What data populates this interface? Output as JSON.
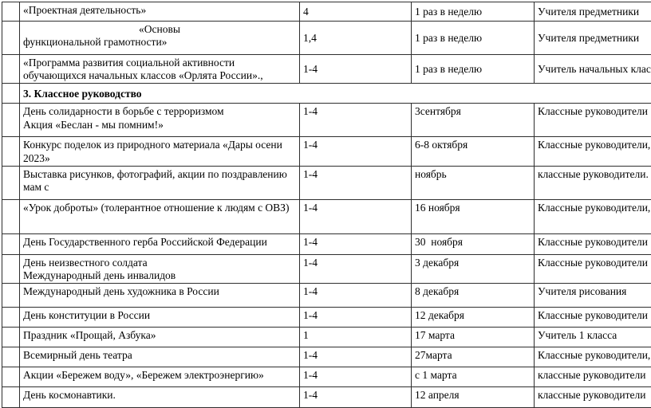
{
  "table": {
    "rows": [
      {
        "type": "item",
        "activity_lines": [
          "«Проектная деятельность»"
        ],
        "grades": "4",
        "date": "1 раз в неделю",
        "teachers": "Учителя предметники"
      },
      {
        "type": "item",
        "activity_lines": [
          "«Основы",
          "функциональной грамотности»"
        ],
        "first_line_centered": true,
        "grades": "1,4",
        "date": "1 раз в неделю",
        "teachers": "Учителя предметники"
      },
      {
        "type": "item",
        "activity_lines": [
          "«Программа развития социальной активности обучающихся начальных классов «Орлята России».,"
        ],
        "grades": "1-4",
        "date": "1 раз в неделю",
        "teachers": "Учитель начальных клас"
      },
      {
        "type": "section",
        "title": "3. Классное руководство"
      },
      {
        "type": "item",
        "activity_lines": [
          "День солидарности в борьбе с терроризмом",
          "Акция «Беслан - мы помним!»"
        ],
        "grades": "1-4",
        "date": "3сентября",
        "teachers": "Классные руководители"
      },
      {
        "type": "item",
        "activity_lines": [
          "Конкурс поделок из природного материала «Дары осени 2023»"
        ],
        "grades": "1-4",
        "date": "6-8 октября",
        "teachers": "Классные руководители,"
      },
      {
        "type": "item",
        "activity_lines": [
          "Выставка рисунков, фотографий, акции по поздравлению мам с"
        ],
        "grades": "1-4",
        "date": "ноябрь",
        "teachers": "классные руководители."
      },
      {
        "type": "item",
        "activity_lines": [
          "«Урок доброты» (толерантное отношение к людям с ОВЗ)"
        ],
        "grades": "1-4",
        "date": "16 ноября",
        "teachers": "Классные руководители,"
      },
      {
        "type": "item",
        "activity_lines": [
          "День Государственного герба Российской Федерации"
        ],
        "grades": "1-4",
        "date": "30  ноября",
        "teachers": "Классные руководители"
      },
      {
        "type": "item",
        "activity_lines": [
          "День неизвестного солдата",
          "Международный день инвалидов"
        ],
        "grades": "1-4",
        "date": "3 декабря",
        "teachers": "Классные руководители"
      },
      {
        "type": "item",
        "activity_lines": [
          "Международный день художника в России"
        ],
        "grades": "1-4",
        "date": "8 декабря",
        "teachers": "Учителя рисования"
      },
      {
        "type": "item",
        "activity_lines": [
          "День конституции в России"
        ],
        "grades": "1-4",
        "date": "12 декабря",
        "teachers": "Классные руководители"
      },
      {
        "type": "item",
        "activity_lines": [
          "Праздник «Прощай, Азбука»"
        ],
        "grades": "1",
        "date": "17 марта",
        "teachers": "Учитель 1 класса"
      },
      {
        "type": "item",
        "activity_lines": [
          "Всемирный день театра"
        ],
        "grades": "1-4",
        "date": "27марта",
        "teachers": "Классные руководители,"
      },
      {
        "type": "item",
        "activity_lines": [
          "Акции «Бережем воду», «Бережем электроэнергию»"
        ],
        "grades": "1-4",
        "date": "с 1 марта",
        "teachers": "классные руководители"
      },
      {
        "type": "item",
        "activity_lines": [
          "День космонавтики."
        ],
        "grades": "1-4",
        "date": "12 апреля",
        "teachers": "классные руководители"
      }
    ]
  }
}
